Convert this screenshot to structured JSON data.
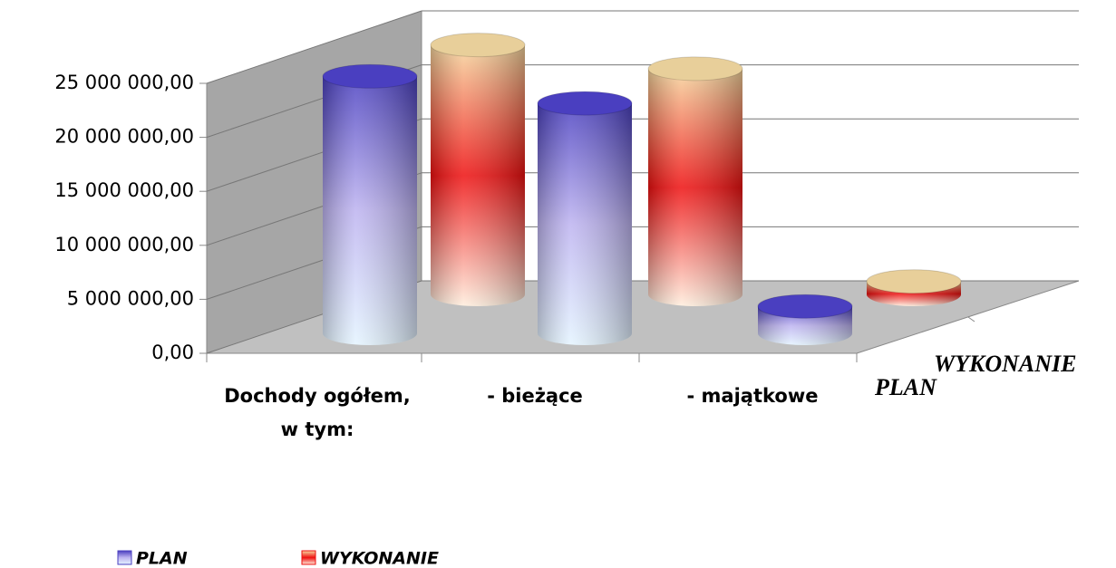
{
  "chart_data": {
    "type": "bar3d",
    "categories": [
      "Dochody ogółem, w tym:",
      "- bieżące",
      "- majątkowe"
    ],
    "series": [
      {
        "name": "PLAN",
        "color": "#4a3fc0",
        "values": [
          23800000,
          21300000,
          2500000
        ]
      },
      {
        "name": "WYKONANIE",
        "color": "#ee1010",
        "values": [
          23100000,
          20900000,
          1200000
        ]
      }
    ],
    "ylim": [
      0,
      25000000
    ],
    "yticks": [
      {
        "value": 0,
        "label": "0,00"
      },
      {
        "value": 5000000,
        "label": "5 000 000,00"
      },
      {
        "value": 10000000,
        "label": "10 000 000,00"
      },
      {
        "value": 15000000,
        "label": "15 000 000,00"
      },
      {
        "value": 20000000,
        "label": "20 000 000,00"
      },
      {
        "value": 25000000,
        "label": "25 000 000,00"
      }
    ],
    "grid": true,
    "legend": "bottom"
  }
}
